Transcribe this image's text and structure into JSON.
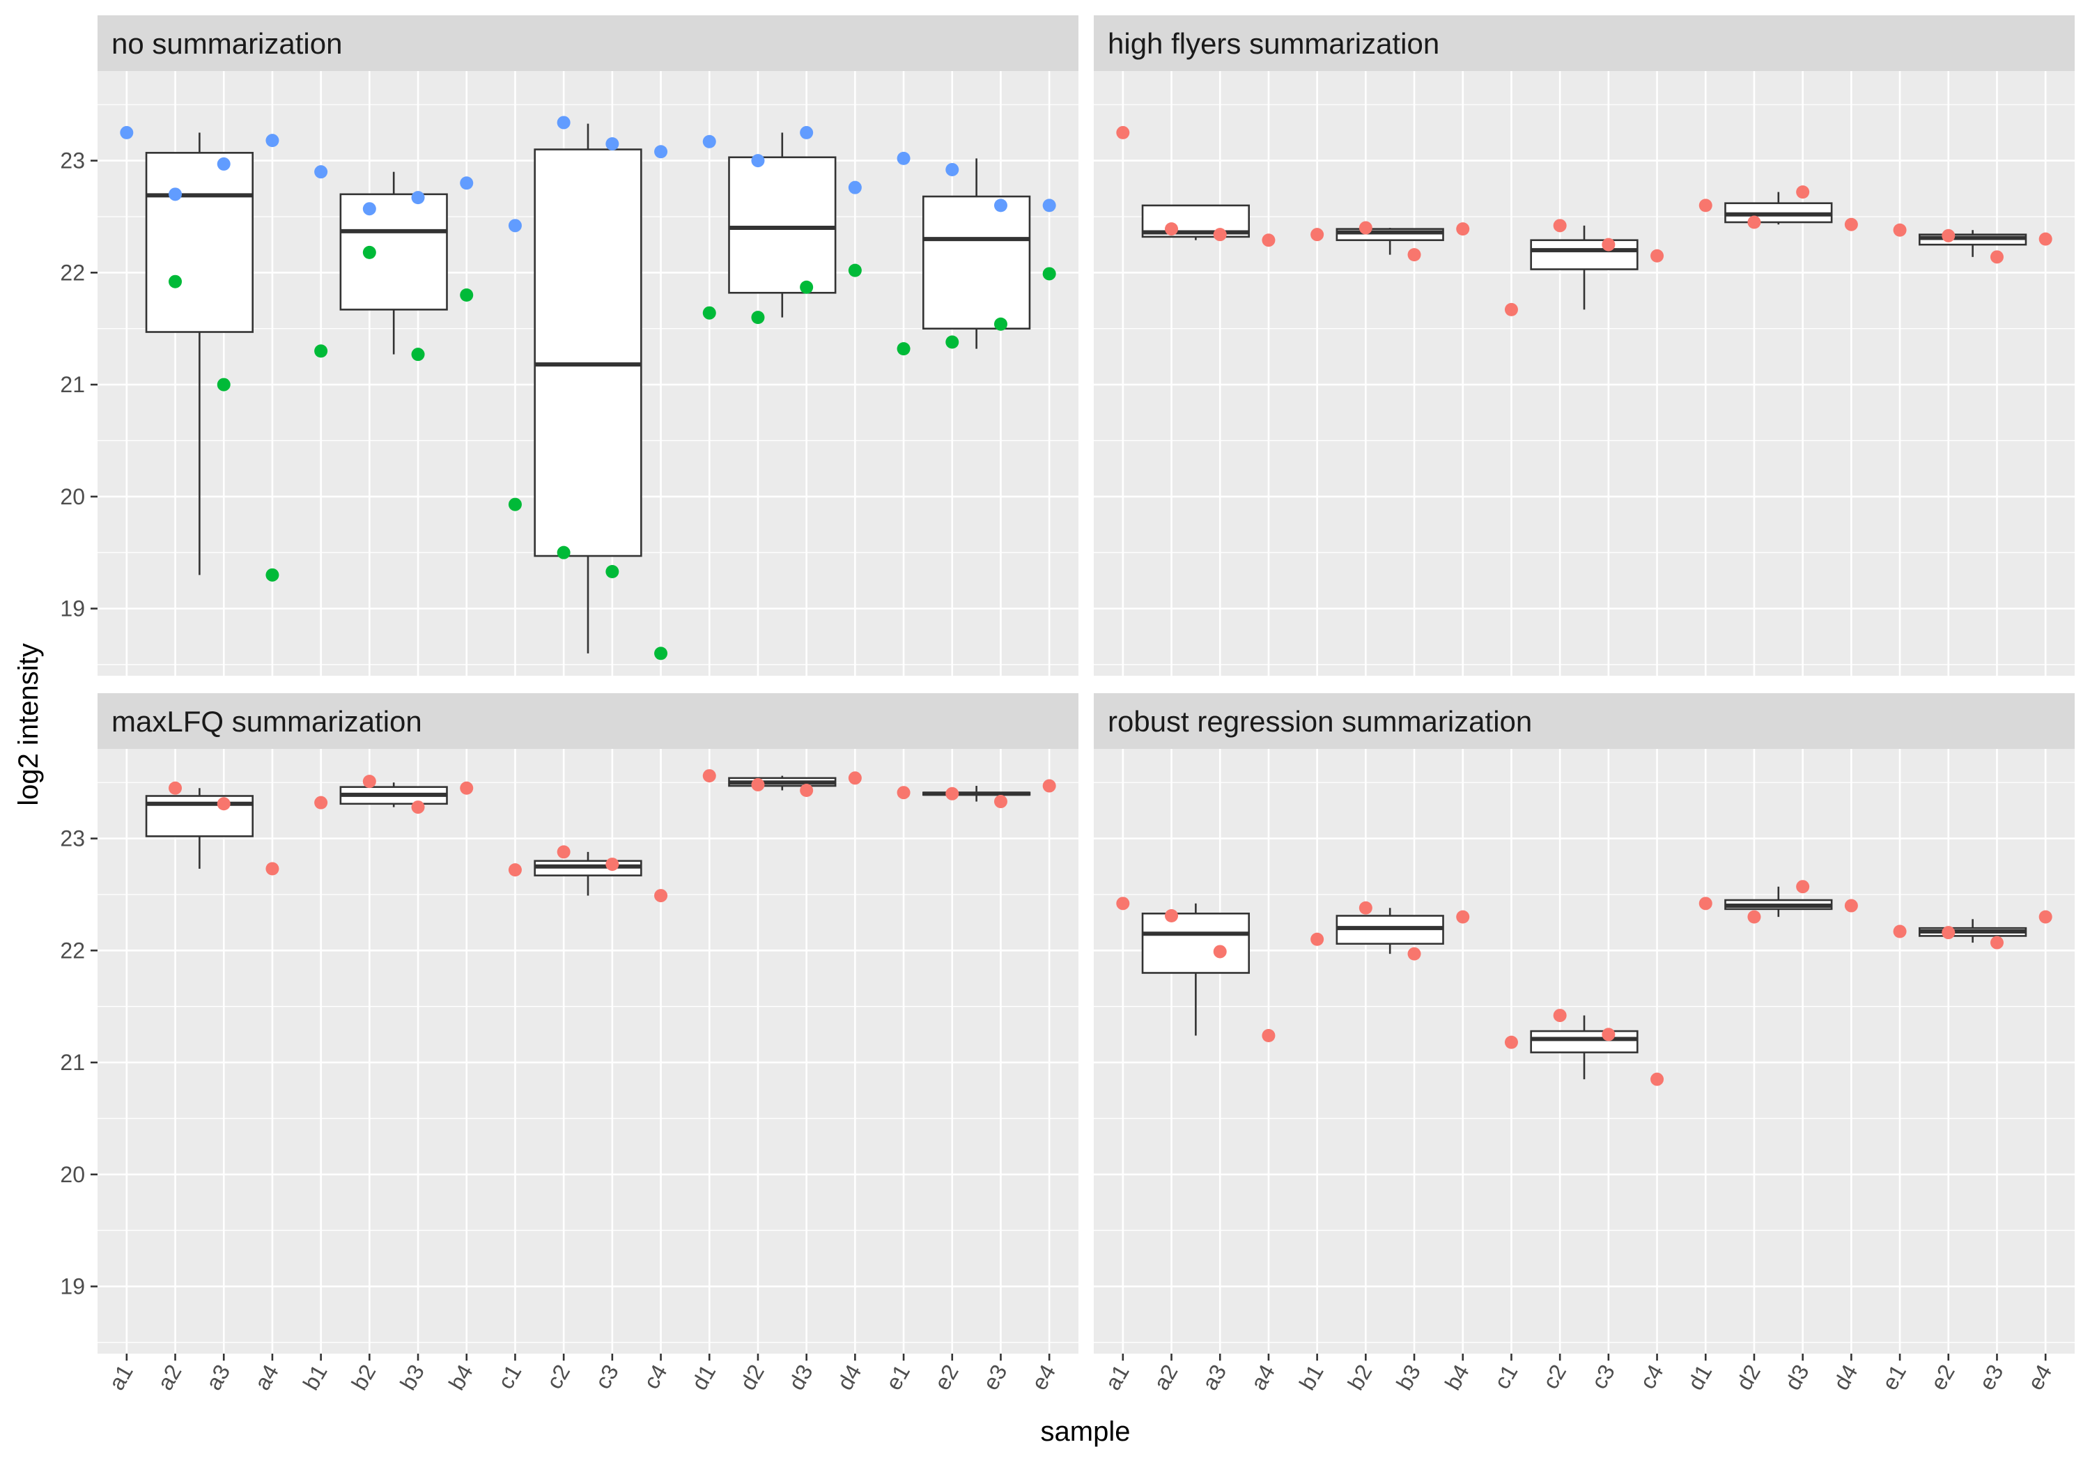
{
  "chart_data": {
    "type": "box",
    "xlabel": "sample",
    "ylabel": "log2 intensity",
    "ylim": [
      18.4,
      23.8
    ],
    "yticks": [
      19,
      20,
      21,
      22,
      23
    ],
    "samples": [
      "a1",
      "a2",
      "a3",
      "a4",
      "b1",
      "b2",
      "b3",
      "b4",
      "c1",
      "c2",
      "c3",
      "c4",
      "d1",
      "d2",
      "d3",
      "d4",
      "e1",
      "e2",
      "e3",
      "e4"
    ],
    "colors": {
      "red": "#F8766D",
      "green": "#00BA38",
      "blue": "#619CFF",
      "panel_bg": "#EBEBEB",
      "strip_bg": "#D9D9D9",
      "grid": "#FFFFFF"
    },
    "panels": [
      {
        "title": "no summarization",
        "boxes": [
          {
            "group": "a",
            "q1": 21.47,
            "median": 22.69,
            "q3": 23.07,
            "low": 19.3,
            "high": 23.25
          },
          {
            "group": "b",
            "q1": 21.67,
            "median": 22.37,
            "q3": 22.7,
            "low": 21.27,
            "high": 22.9
          },
          {
            "group": "c",
            "q1": 19.47,
            "median": 21.18,
            "q3": 23.1,
            "low": 18.6,
            "high": 23.33
          },
          {
            "group": "d",
            "q1": 21.82,
            "median": 22.4,
            "q3": 23.03,
            "low": 21.6,
            "high": 23.25
          },
          {
            "group": "e",
            "q1": 21.5,
            "median": 22.3,
            "q3": 22.68,
            "low": 21.32,
            "high": 23.02
          }
        ],
        "points": [
          {
            "sample": "a1",
            "value": 23.25,
            "color": "blue"
          },
          {
            "sample": "a2",
            "value": 22.7,
            "color": "blue"
          },
          {
            "sample": "a2",
            "value": 21.92,
            "color": "green"
          },
          {
            "sample": "a3",
            "value": 22.97,
            "color": "blue"
          },
          {
            "sample": "a3",
            "value": 21.0,
            "color": "green"
          },
          {
            "sample": "a4",
            "value": 23.18,
            "color": "blue"
          },
          {
            "sample": "a4",
            "value": 19.3,
            "color": "green"
          },
          {
            "sample": "b1",
            "value": 22.9,
            "color": "blue"
          },
          {
            "sample": "b1",
            "value": 21.3,
            "color": "green"
          },
          {
            "sample": "b2",
            "value": 22.57,
            "color": "blue"
          },
          {
            "sample": "b2",
            "value": 22.18,
            "color": "green"
          },
          {
            "sample": "b3",
            "value": 22.67,
            "color": "blue"
          },
          {
            "sample": "b3",
            "value": 21.27,
            "color": "green"
          },
          {
            "sample": "b4",
            "value": 22.8,
            "color": "blue"
          },
          {
            "sample": "b4",
            "value": 21.8,
            "color": "green"
          },
          {
            "sample": "c1",
            "value": 22.42,
            "color": "blue"
          },
          {
            "sample": "c1",
            "value": 19.93,
            "color": "green"
          },
          {
            "sample": "c2",
            "value": 23.34,
            "color": "blue"
          },
          {
            "sample": "c2",
            "value": 19.5,
            "color": "green"
          },
          {
            "sample": "c3",
            "value": 23.15,
            "color": "blue"
          },
          {
            "sample": "c3",
            "value": 19.33,
            "color": "green"
          },
          {
            "sample": "c4",
            "value": 23.08,
            "color": "blue"
          },
          {
            "sample": "c4",
            "value": 18.6,
            "color": "green"
          },
          {
            "sample": "d1",
            "value": 23.17,
            "color": "blue"
          },
          {
            "sample": "d1",
            "value": 21.64,
            "color": "green"
          },
          {
            "sample": "d2",
            "value": 23.0,
            "color": "blue"
          },
          {
            "sample": "d2",
            "value": 21.6,
            "color": "green"
          },
          {
            "sample": "d3",
            "value": 23.25,
            "color": "blue"
          },
          {
            "sample": "d3",
            "value": 21.87,
            "color": "green"
          },
          {
            "sample": "d4",
            "value": 22.76,
            "color": "blue"
          },
          {
            "sample": "d4",
            "value": 22.02,
            "color": "green"
          },
          {
            "sample": "e1",
            "value": 23.02,
            "color": "blue"
          },
          {
            "sample": "e1",
            "value": 21.32,
            "color": "green"
          },
          {
            "sample": "e2",
            "value": 22.92,
            "color": "blue"
          },
          {
            "sample": "e2",
            "value": 21.38,
            "color": "green"
          },
          {
            "sample": "e3",
            "value": 22.6,
            "color": "blue"
          },
          {
            "sample": "e3",
            "value": 21.54,
            "color": "green"
          },
          {
            "sample": "e4",
            "value": 22.6,
            "color": "blue"
          },
          {
            "sample": "e4",
            "value": 21.99,
            "color": "green"
          }
        ]
      },
      {
        "title": "high flyers summarization",
        "boxes": [
          {
            "group": "a",
            "q1": 22.32,
            "median": 22.36,
            "q3": 22.6,
            "low": 22.29,
            "high": 22.6
          },
          {
            "group": "b",
            "q1": 22.29,
            "median": 22.36,
            "q3": 22.39,
            "low": 22.16,
            "high": 22.4
          },
          {
            "group": "c",
            "q1": 22.03,
            "median": 22.2,
            "q3": 22.29,
            "low": 21.67,
            "high": 22.42
          },
          {
            "group": "d",
            "q1": 22.45,
            "median": 22.52,
            "q3": 22.62,
            "low": 22.43,
            "high": 22.72
          },
          {
            "group": "e",
            "q1": 22.25,
            "median": 22.31,
            "q3": 22.34,
            "low": 22.14,
            "high": 22.38
          }
        ],
        "points": [
          {
            "sample": "a1",
            "value": 23.25,
            "color": "red"
          },
          {
            "sample": "a2",
            "value": 22.39,
            "color": "red"
          },
          {
            "sample": "a3",
            "value": 22.34,
            "color": "red"
          },
          {
            "sample": "a4",
            "value": 22.29,
            "color": "red"
          },
          {
            "sample": "b1",
            "value": 22.34,
            "color": "red"
          },
          {
            "sample": "b2",
            "value": 22.4,
            "color": "red"
          },
          {
            "sample": "b3",
            "value": 22.16,
            "color": "red"
          },
          {
            "sample": "b4",
            "value": 22.39,
            "color": "red"
          },
          {
            "sample": "c1",
            "value": 21.67,
            "color": "red"
          },
          {
            "sample": "c2",
            "value": 22.42,
            "color": "red"
          },
          {
            "sample": "c3",
            "value": 22.25,
            "color": "red"
          },
          {
            "sample": "c4",
            "value": 22.15,
            "color": "red"
          },
          {
            "sample": "d1",
            "value": 22.6,
            "color": "red"
          },
          {
            "sample": "d2",
            "value": 22.45,
            "color": "red"
          },
          {
            "sample": "d3",
            "value": 22.72,
            "color": "red"
          },
          {
            "sample": "d4",
            "value": 22.43,
            "color": "red"
          },
          {
            "sample": "e1",
            "value": 22.38,
            "color": "red"
          },
          {
            "sample": "e2",
            "value": 22.33,
            "color": "red"
          },
          {
            "sample": "e3",
            "value": 22.14,
            "color": "red"
          },
          {
            "sample": "e4",
            "value": 22.3,
            "color": "red"
          }
        ]
      },
      {
        "title": "maxLFQ summarization",
        "boxes": [
          {
            "group": "a",
            "q1": 23.02,
            "median": 23.31,
            "q3": 23.38,
            "low": 22.73,
            "high": 23.45
          },
          {
            "group": "b",
            "q1": 23.31,
            "median": 23.39,
            "q3": 23.46,
            "low": 23.28,
            "high": 23.5
          },
          {
            "group": "c",
            "q1": 22.67,
            "median": 22.75,
            "q3": 22.8,
            "low": 22.49,
            "high": 22.88
          },
          {
            "group": "d",
            "q1": 23.47,
            "median": 23.5,
            "q3": 23.54,
            "low": 23.43,
            "high": 23.56
          },
          {
            "group": "e",
            "q1": 23.39,
            "median": 23.4,
            "q3": 23.41,
            "low": 23.33,
            "high": 23.47
          }
        ],
        "points": [
          {
            "sample": "a2",
            "value": 23.45,
            "color": "red"
          },
          {
            "sample": "a3",
            "value": 23.31,
            "color": "red"
          },
          {
            "sample": "a4",
            "value": 22.73,
            "color": "red"
          },
          {
            "sample": "b1",
            "value": 23.32,
            "color": "red"
          },
          {
            "sample": "b2",
            "value": 23.51,
            "color": "red"
          },
          {
            "sample": "b3",
            "value": 23.28,
            "color": "red"
          },
          {
            "sample": "b4",
            "value": 23.45,
            "color": "red"
          },
          {
            "sample": "c1",
            "value": 22.72,
            "color": "red"
          },
          {
            "sample": "c2",
            "value": 22.88,
            "color": "red"
          },
          {
            "sample": "c3",
            "value": 22.77,
            "color": "red"
          },
          {
            "sample": "c4",
            "value": 22.49,
            "color": "red"
          },
          {
            "sample": "d1",
            "value": 23.56,
            "color": "red"
          },
          {
            "sample": "d2",
            "value": 23.48,
            "color": "red"
          },
          {
            "sample": "d3",
            "value": 23.43,
            "color": "red"
          },
          {
            "sample": "d4",
            "value": 23.54,
            "color": "red"
          },
          {
            "sample": "e1",
            "value": 23.41,
            "color": "red"
          },
          {
            "sample": "e2",
            "value": 23.4,
            "color": "red"
          },
          {
            "sample": "e3",
            "value": 23.33,
            "color": "red"
          },
          {
            "sample": "e4",
            "value": 23.47,
            "color": "red"
          }
        ]
      },
      {
        "title": "robust regression summarization",
        "boxes": [
          {
            "group": "a",
            "q1": 21.8,
            "median": 22.15,
            "q3": 22.33,
            "low": 21.24,
            "high": 22.42
          },
          {
            "group": "b",
            "q1": 22.06,
            "median": 22.2,
            "q3": 22.31,
            "low": 21.97,
            "high": 22.38
          },
          {
            "group": "c",
            "q1": 21.09,
            "median": 21.21,
            "q3": 21.28,
            "low": 20.85,
            "high": 21.42
          },
          {
            "group": "d",
            "q1": 22.37,
            "median": 22.4,
            "q3": 22.45,
            "low": 22.3,
            "high": 22.57
          },
          {
            "group": "e",
            "q1": 22.13,
            "median": 22.17,
            "q3": 22.2,
            "low": 22.07,
            "high": 22.28
          }
        ],
        "points": [
          {
            "sample": "a1",
            "value": 22.42,
            "color": "red"
          },
          {
            "sample": "a2",
            "value": 22.31,
            "color": "red"
          },
          {
            "sample": "a3",
            "value": 21.99,
            "color": "red"
          },
          {
            "sample": "a4",
            "value": 21.24,
            "color": "red"
          },
          {
            "sample": "b1",
            "value": 22.1,
            "color": "red"
          },
          {
            "sample": "b2",
            "value": 22.38,
            "color": "red"
          },
          {
            "sample": "b3",
            "value": 21.97,
            "color": "red"
          },
          {
            "sample": "b4",
            "value": 22.3,
            "color": "red"
          },
          {
            "sample": "c1",
            "value": 21.18,
            "color": "red"
          },
          {
            "sample": "c2",
            "value": 21.42,
            "color": "red"
          },
          {
            "sample": "c3",
            "value": 21.25,
            "color": "red"
          },
          {
            "sample": "c4",
            "value": 20.85,
            "color": "red"
          },
          {
            "sample": "d1",
            "value": 22.42,
            "color": "red"
          },
          {
            "sample": "d2",
            "value": 22.3,
            "color": "red"
          },
          {
            "sample": "d3",
            "value": 22.57,
            "color": "red"
          },
          {
            "sample": "d4",
            "value": 22.4,
            "color": "red"
          },
          {
            "sample": "e1",
            "value": 22.17,
            "color": "red"
          },
          {
            "sample": "e2",
            "value": 22.16,
            "color": "red"
          },
          {
            "sample": "e3",
            "value": 22.07,
            "color": "red"
          },
          {
            "sample": "e4",
            "value": 22.3,
            "color": "red"
          }
        ]
      }
    ]
  }
}
